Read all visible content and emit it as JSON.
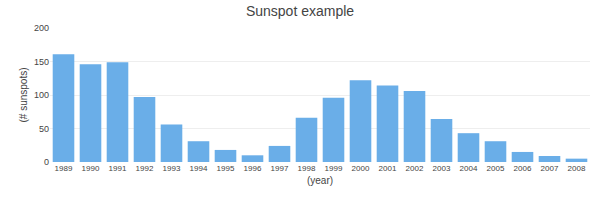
{
  "chart_data": {
    "type": "bar",
    "title": "Sunspot example",
    "xlabel": "(year)",
    "ylabel": "(# sunspots)",
    "categories": [
      "1989",
      "1990",
      "1991",
      "1992",
      "1993",
      "1994",
      "1995",
      "1996",
      "1997",
      "1998",
      "1999",
      "2000",
      "2001",
      "2002",
      "2003",
      "2004",
      "2005",
      "2006",
      "2007",
      "2008"
    ],
    "values": [
      161,
      146,
      149,
      97,
      56,
      31,
      18,
      10,
      24,
      66,
      96,
      122,
      114,
      106,
      64,
      43,
      31,
      15,
      9,
      5
    ],
    "color": "#6aaee8",
    "ylim": [
      0,
      200
    ],
    "yticks": [
      0,
      50,
      100,
      150,
      200
    ],
    "grid": true
  }
}
